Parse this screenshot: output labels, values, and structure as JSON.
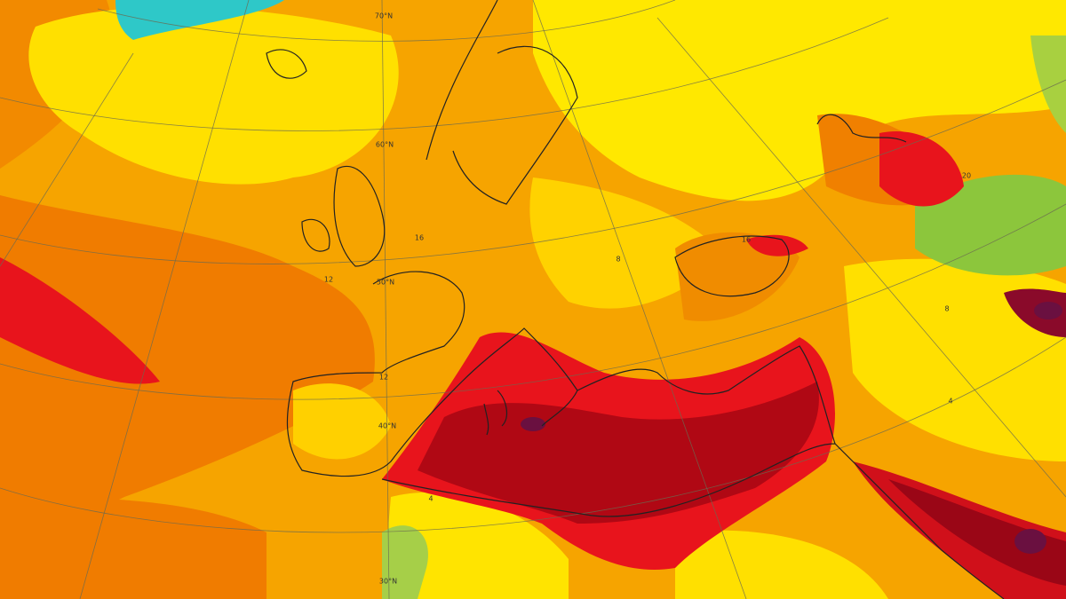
{
  "latitude_labels": [
    "70°N",
    "60°N",
    "50°N",
    "40°N",
    "30°N"
  ],
  "contour_labels": [
    "16",
    "12",
    "8",
    "4",
    "20",
    "16",
    "12",
    "8",
    "4"
  ]
}
